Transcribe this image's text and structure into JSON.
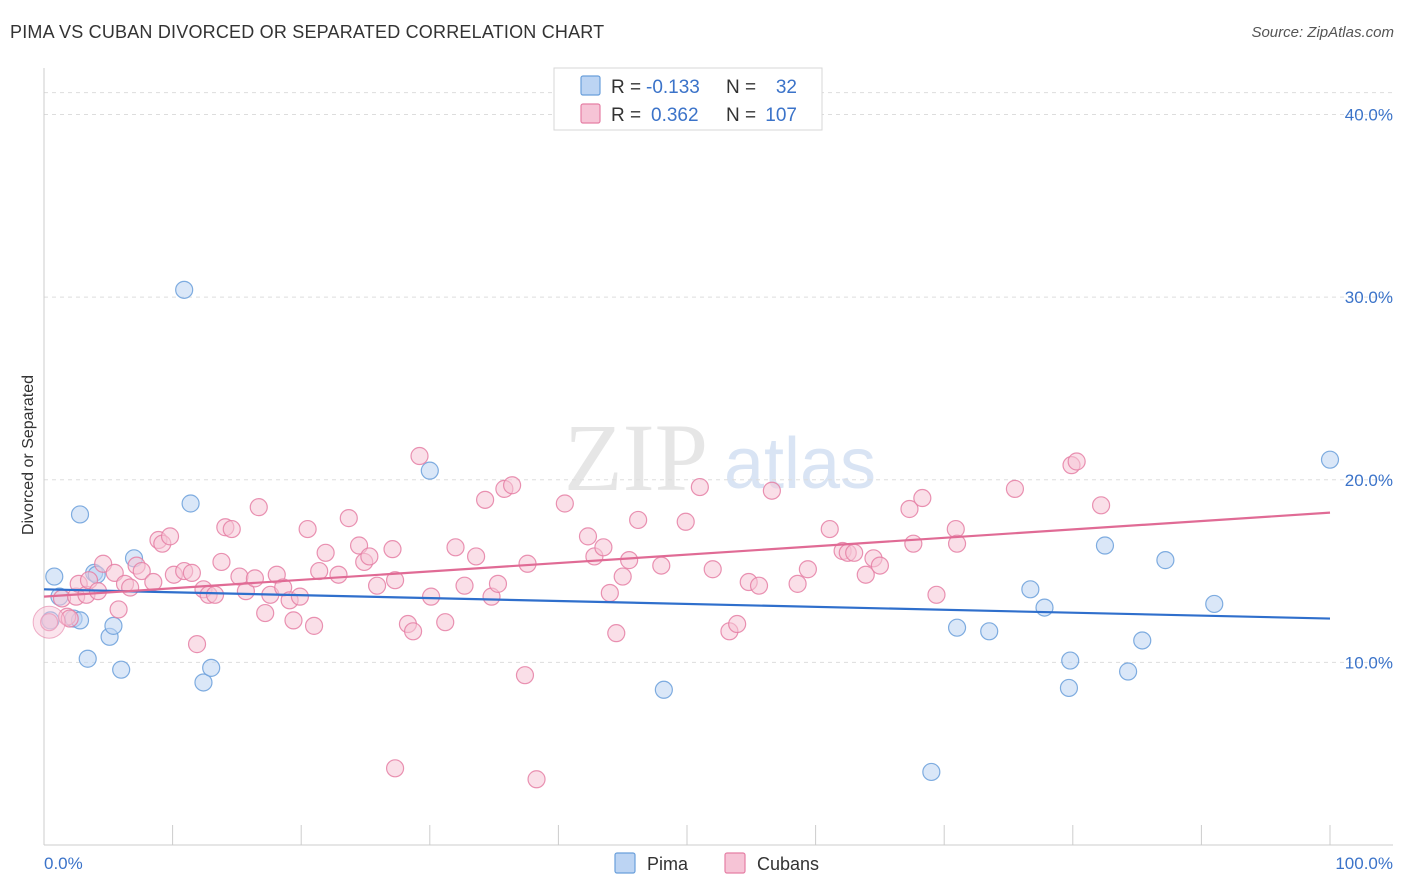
{
  "header": {
    "title": "PIMA VS CUBAN DIVORCED OR SEPARATED CORRELATION CHART",
    "source": "Source: ZipAtlas.com"
  },
  "watermark": {
    "zip": "ZIP",
    "atlas": "atlas"
  },
  "colors": {
    "pima": "#6a9fdb",
    "pima_fill": "#bcd4f3",
    "pima_line": "#2f6fcc",
    "cubans": "#e57fa5",
    "cubans_fill": "#f6c4d6",
    "cubans_line": "#e06b95",
    "axis_label": "#3b73c9",
    "grid": "#dddddd"
  },
  "legend": {
    "rows": [
      {
        "r_label": "R =",
        "r_value": "-0.133",
        "n_label": "N =",
        "n_value": "32"
      },
      {
        "r_label": "R =",
        "r_value": "0.362",
        "n_label": "N =",
        "n_value": "107"
      }
    ]
  },
  "bottom_legend": {
    "pima": "Pima",
    "cubans": "Cubans"
  },
  "chart_data": {
    "type": "scatter",
    "title": "PIMA VS CUBAN DIVORCED OR SEPARATED CORRELATION CHART",
    "xlabel": "",
    "ylabel": "Divorced or Separated",
    "xlim": [
      0,
      100
    ],
    "ylim": [
      0,
      42
    ],
    "x_tick_labels": [
      "0.0%",
      "100.0%"
    ],
    "y_ticks": [
      10,
      20,
      30,
      40
    ],
    "y_tick_labels": [
      "10.0%",
      "20.0%",
      "30.0%",
      "40.0%"
    ],
    "grid": true,
    "series": [
      {
        "name": "Pima",
        "r": -0.133,
        "n": 32,
        "trend": {
          "x": [
            0,
            100
          ],
          "y": [
            14.0,
            12.4
          ]
        },
        "points": [
          [
            0.5,
            12.3
          ],
          [
            0.8,
            14.7
          ],
          [
            1.2,
            13.6
          ],
          [
            2.3,
            12.4
          ],
          [
            2.8,
            12.3
          ],
          [
            2.8,
            18.1
          ],
          [
            3.4,
            10.2
          ],
          [
            3.9,
            14.9
          ],
          [
            4.1,
            14.8
          ],
          [
            5.1,
            11.4
          ],
          [
            5.4,
            12.0
          ],
          [
            6.0,
            9.6
          ],
          [
            7.0,
            15.7
          ],
          [
            10.9,
            30.4
          ],
          [
            11.4,
            18.7
          ],
          [
            12.4,
            8.9
          ],
          [
            13.0,
            9.7
          ],
          [
            30.0,
            20.5
          ],
          [
            48.2,
            8.5
          ],
          [
            69.0,
            4.0
          ],
          [
            71.0,
            11.9
          ],
          [
            73.5,
            11.7
          ],
          [
            76.7,
            14.0
          ],
          [
            77.8,
            13.0
          ],
          [
            79.8,
            10.1
          ],
          [
            79.7,
            8.6
          ],
          [
            82.5,
            16.4
          ],
          [
            84.3,
            9.5
          ],
          [
            85.4,
            11.2
          ],
          [
            87.2,
            15.6
          ],
          [
            91.0,
            13.2
          ],
          [
            100.0,
            21.1
          ]
        ]
      },
      {
        "name": "Cubans",
        "r": 0.362,
        "n": 107,
        "trend": {
          "x": [
            0,
            100
          ],
          "y": [
            13.6,
            18.2
          ]
        },
        "points": [
          [
            0.4,
            12.2
          ],
          [
            1.4,
            13.5
          ],
          [
            1.8,
            12.5
          ],
          [
            2.0,
            12.4
          ],
          [
            2.5,
            13.6
          ],
          [
            2.7,
            14.3
          ],
          [
            3.3,
            13.7
          ],
          [
            3.5,
            14.5
          ],
          [
            4.2,
            13.9
          ],
          [
            4.6,
            15.4
          ],
          [
            5.5,
            14.9
          ],
          [
            5.8,
            12.9
          ],
          [
            6.3,
            14.3
          ],
          [
            6.7,
            14.1
          ],
          [
            7.2,
            15.3
          ],
          [
            7.6,
            15.0
          ],
          [
            8.5,
            14.4
          ],
          [
            8.9,
            16.7
          ],
          [
            9.2,
            16.5
          ],
          [
            9.8,
            16.9
          ],
          [
            10.1,
            14.8
          ],
          [
            10.9,
            15.0
          ],
          [
            11.5,
            14.9
          ],
          [
            11.9,
            11.0
          ],
          [
            12.4,
            14.0
          ],
          [
            12.8,
            13.7
          ],
          [
            13.3,
            13.7
          ],
          [
            13.8,
            15.5
          ],
          [
            14.1,
            17.4
          ],
          [
            14.6,
            17.3
          ],
          [
            15.2,
            14.7
          ],
          [
            15.7,
            13.9
          ],
          [
            16.4,
            14.6
          ],
          [
            16.7,
            18.5
          ],
          [
            17.2,
            12.7
          ],
          [
            17.6,
            13.7
          ],
          [
            18.1,
            14.8
          ],
          [
            18.6,
            14.1
          ],
          [
            19.1,
            13.4
          ],
          [
            19.4,
            12.3
          ],
          [
            19.9,
            13.6
          ],
          [
            20.5,
            17.3
          ],
          [
            21.0,
            12.0
          ],
          [
            21.4,
            15.0
          ],
          [
            21.9,
            16.0
          ],
          [
            22.9,
            14.8
          ],
          [
            23.7,
            17.9
          ],
          [
            24.5,
            16.4
          ],
          [
            24.9,
            15.5
          ],
          [
            25.3,
            15.8
          ],
          [
            25.9,
            14.2
          ],
          [
            27.1,
            16.2
          ],
          [
            27.3,
            14.5
          ],
          [
            28.3,
            12.1
          ],
          [
            28.7,
            11.7
          ],
          [
            29.2,
            21.3
          ],
          [
            30.1,
            13.6
          ],
          [
            31.2,
            12.2
          ],
          [
            32.0,
            16.3
          ],
          [
            32.7,
            14.2
          ],
          [
            33.6,
            15.8
          ],
          [
            34.3,
            18.9
          ],
          [
            34.8,
            13.6
          ],
          [
            35.3,
            14.3
          ],
          [
            35.8,
            19.5
          ],
          [
            36.4,
            19.7
          ],
          [
            37.4,
            9.3
          ],
          [
            37.6,
            15.4
          ],
          [
            38.3,
            3.6
          ],
          [
            40.5,
            18.7
          ],
          [
            42.3,
            16.9
          ],
          [
            42.8,
            15.8
          ],
          [
            43.5,
            16.3
          ],
          [
            44.0,
            13.8
          ],
          [
            44.5,
            11.6
          ],
          [
            45.0,
            14.7
          ],
          [
            45.5,
            15.6
          ],
          [
            46.2,
            17.8
          ],
          [
            48.0,
            15.3
          ],
          [
            49.9,
            17.7
          ],
          [
            51.0,
            19.6
          ],
          [
            52.0,
            15.1
          ],
          [
            53.3,
            11.7
          ],
          [
            53.9,
            12.1
          ],
          [
            54.8,
            14.4
          ],
          [
            55.6,
            14.2
          ],
          [
            56.6,
            19.4
          ],
          [
            58.6,
            14.3
          ],
          [
            59.4,
            15.1
          ],
          [
            61.1,
            17.3
          ],
          [
            62.1,
            16.1
          ],
          [
            62.5,
            16.0
          ],
          [
            63.0,
            16.0
          ],
          [
            63.9,
            14.8
          ],
          [
            64.5,
            15.7
          ],
          [
            65.0,
            15.3
          ],
          [
            67.3,
            18.4
          ],
          [
            67.6,
            16.5
          ],
          [
            68.3,
            19.0
          ],
          [
            69.4,
            13.7
          ],
          [
            70.9,
            17.3
          ],
          [
            71.0,
            16.5
          ],
          [
            75.5,
            19.5
          ],
          [
            79.9,
            20.8
          ],
          [
            80.3,
            21.0
          ],
          [
            82.2,
            18.6
          ],
          [
            27.3,
            4.2
          ]
        ]
      }
    ]
  }
}
